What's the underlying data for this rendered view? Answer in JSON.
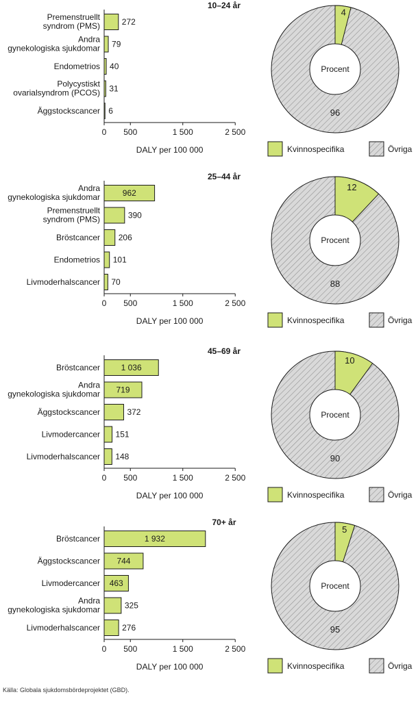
{
  "colors": {
    "specific": "#cfe277",
    "other_fill": "#d9d9d9",
    "hatch": "#8c8c8c",
    "stroke": "#1a1a1a"
  },
  "chart_data": [
    {
      "type": "bar",
      "title": "10–24 år",
      "xlabel": "DALY per 100 000",
      "xlim": [
        0,
        2500
      ],
      "ticks": [
        "0",
        "500",
        "1 500",
        "2 500"
      ],
      "tick_values": [
        0,
        500,
        1500,
        2500
      ],
      "categories": [
        [
          "Premenstruellt",
          "syndrom (PMS)"
        ],
        [
          "Andra",
          "gynekologiska sjukdomar"
        ],
        [
          "Endometrios"
        ],
        [
          "Polycystiskt",
          "ovarialsyndrom (PCOS)"
        ],
        [
          "Äggstockscancer"
        ]
      ],
      "values": [
        272,
        79,
        40,
        31,
        6
      ],
      "value_labels": [
        "272",
        "79",
        "40",
        "31",
        "6"
      ],
      "donut": {
        "type": "pie",
        "center_label": "Procent",
        "specific_share": 4,
        "other_share": 96,
        "specific_label": "4",
        "other_label": "96"
      },
      "legend": [
        "Kvinnospecifika",
        "Övriga"
      ]
    },
    {
      "type": "bar",
      "title": "25–44 år",
      "xlabel": "DALY per 100 000",
      "xlim": [
        0,
        2500
      ],
      "ticks": [
        "0",
        "500",
        "1 500",
        "2 500"
      ],
      "tick_values": [
        0,
        500,
        1500,
        2500
      ],
      "categories": [
        [
          "Andra",
          "gynekologiska sjukdomar"
        ],
        [
          "Premenstruellt",
          "syndrom (PMS)"
        ],
        [
          "Bröstcancer"
        ],
        [
          "Endometrios"
        ],
        [
          "Livmoderhalscancer"
        ]
      ],
      "values": [
        962,
        390,
        206,
        101,
        70
      ],
      "value_labels": [
        "962",
        "390",
        "206",
        "101",
        "70"
      ],
      "donut": {
        "type": "pie",
        "center_label": "Procent",
        "specific_share": 12,
        "other_share": 88,
        "specific_label": "12",
        "other_label": "88"
      },
      "legend": [
        "Kvinnospecifika",
        "Övriga"
      ]
    },
    {
      "type": "bar",
      "title": "45–69 år",
      "xlabel": "DALY per 100 000",
      "xlim": [
        0,
        2500
      ],
      "ticks": [
        "0",
        "500",
        "1 500",
        "2 500"
      ],
      "tick_values": [
        0,
        500,
        1500,
        2500
      ],
      "categories": [
        [
          "Bröstcancer"
        ],
        [
          "Andra",
          "gynekologiska sjukdomar"
        ],
        [
          "Äggstockscancer"
        ],
        [
          "Livmodercancer"
        ],
        [
          "Livmoderhalscancer"
        ]
      ],
      "values": [
        1036,
        719,
        372,
        151,
        148
      ],
      "value_labels": [
        "1 036",
        "719",
        "372",
        "151",
        "148"
      ],
      "donut": {
        "type": "pie",
        "center_label": "Procent",
        "specific_share": 10,
        "other_share": 90,
        "specific_label": "10",
        "other_label": "90"
      },
      "legend": [
        "Kvinnospecifika",
        "Övriga"
      ]
    },
    {
      "type": "bar",
      "title": "70+ år",
      "xlabel": "DALY per 100 000",
      "xlim": [
        0,
        2500
      ],
      "ticks": [
        "0",
        "500",
        "1 500",
        "2 500"
      ],
      "tick_values": [
        0,
        500,
        1500,
        2500
      ],
      "categories": [
        [
          "Bröstcancer"
        ],
        [
          "Äggstockscancer"
        ],
        [
          "Livmodercancer"
        ],
        [
          "Andra",
          "gynekologiska sjukdomar"
        ],
        [
          "Livmoderhalscancer"
        ]
      ],
      "values": [
        1932,
        744,
        463,
        325,
        276
      ],
      "value_labels": [
        "1 932",
        "744",
        "463",
        "325",
        "276"
      ],
      "donut": {
        "type": "pie",
        "center_label": "Procent",
        "specific_share": 5,
        "other_share": 95,
        "specific_label": "5",
        "other_label": "95"
      },
      "legend": [
        "Kvinnospecifika",
        "Övriga"
      ]
    }
  ],
  "source": "Källa: Globala sjukdomsbördeprojektet (GBD)."
}
